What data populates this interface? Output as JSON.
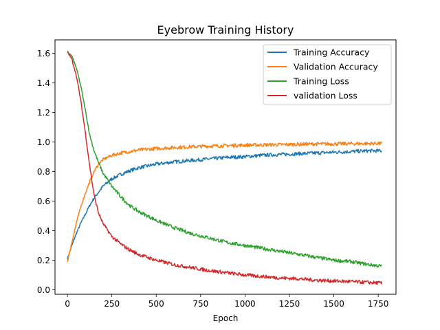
{
  "chart_data": {
    "type": "line",
    "title": "Eyebrow Training History",
    "xlabel": "Epoch",
    "ylabel": "",
    "xlim": [
      -70,
      1850
    ],
    "ylim": [
      -0.03,
      1.69
    ],
    "xticks": [
      0,
      250,
      500,
      750,
      1000,
      1250,
      1500,
      1750
    ],
    "yticks": [
      0.0,
      0.2,
      0.4,
      0.6,
      0.8,
      1.0,
      1.2,
      1.4,
      1.6
    ],
    "grid": false,
    "legend_position": "top-right",
    "series": [
      {
        "name": "Training Accuracy",
        "color": "#1f77b4",
        "x": [
          0,
          25,
          50,
          75,
          100,
          125,
          150,
          175,
          200,
          250,
          300,
          350,
          400,
          500,
          600,
          700,
          800,
          900,
          1000,
          1100,
          1200,
          1300,
          1400,
          1500,
          1600,
          1700,
          1770
        ],
        "y": [
          0.21,
          0.3,
          0.38,
          0.45,
          0.51,
          0.57,
          0.62,
          0.66,
          0.7,
          0.75,
          0.78,
          0.805,
          0.825,
          0.85,
          0.865,
          0.875,
          0.885,
          0.895,
          0.9,
          0.91,
          0.915,
          0.92,
          0.925,
          0.93,
          0.935,
          0.94,
          0.94
        ]
      },
      {
        "name": "Validation Accuracy",
        "color": "#ff7f0e",
        "x": [
          0,
          25,
          50,
          75,
          100,
          125,
          150,
          175,
          200,
          250,
          300,
          350,
          400,
          500,
          600,
          700,
          800,
          900,
          1000,
          1100,
          1200,
          1300,
          1400,
          1500,
          1600,
          1700,
          1770
        ],
        "y": [
          0.19,
          0.32,
          0.45,
          0.56,
          0.65,
          0.73,
          0.8,
          0.85,
          0.88,
          0.91,
          0.925,
          0.935,
          0.945,
          0.955,
          0.962,
          0.967,
          0.972,
          0.975,
          0.978,
          0.98,
          0.982,
          0.984,
          0.986,
          0.987,
          0.988,
          0.989,
          0.99
        ]
      },
      {
        "name": "Training Loss",
        "color": "#2ca02c",
        "x": [
          0,
          25,
          50,
          75,
          100,
          125,
          150,
          175,
          200,
          250,
          300,
          350,
          400,
          500,
          600,
          700,
          800,
          900,
          1000,
          1100,
          1200,
          1300,
          1400,
          1500,
          1600,
          1700,
          1770
        ],
        "y": [
          1.61,
          1.58,
          1.5,
          1.38,
          1.22,
          1.05,
          0.94,
          0.86,
          0.79,
          0.7,
          0.63,
          0.57,
          0.53,
          0.47,
          0.42,
          0.38,
          0.35,
          0.32,
          0.3,
          0.28,
          0.26,
          0.24,
          0.22,
          0.2,
          0.19,
          0.17,
          0.16
        ]
      },
      {
        "name": "validation Loss",
        "color": "#d62728",
        "x": [
          0,
          25,
          50,
          75,
          100,
          125,
          150,
          175,
          200,
          250,
          300,
          350,
          400,
          500,
          600,
          700,
          800,
          900,
          1000,
          1100,
          1200,
          1300,
          1400,
          1500,
          1600,
          1700,
          1770
        ],
        "y": [
          1.61,
          1.56,
          1.45,
          1.28,
          1.07,
          0.84,
          0.64,
          0.52,
          0.45,
          0.36,
          0.31,
          0.27,
          0.24,
          0.2,
          0.17,
          0.15,
          0.13,
          0.115,
          0.1,
          0.09,
          0.08,
          0.075,
          0.065,
          0.06,
          0.055,
          0.05,
          0.045
        ]
      }
    ]
  }
}
